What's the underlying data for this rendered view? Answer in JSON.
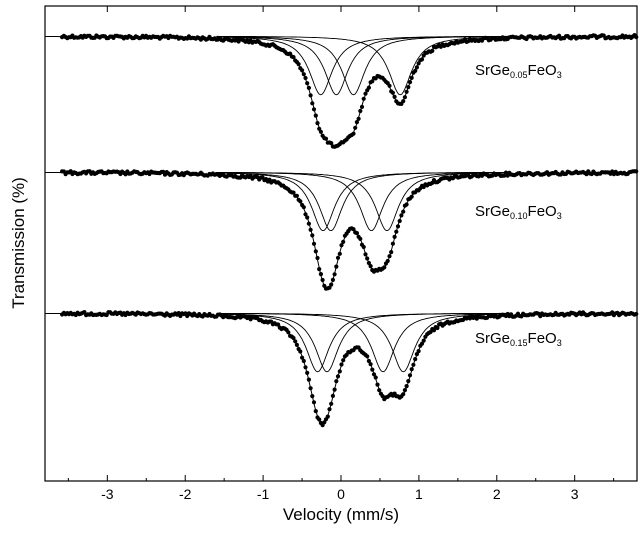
{
  "chart_data": {
    "type": "line",
    "title": "",
    "xlabel": "Velocity (mm/s)",
    "ylabel": "Transmission (%)",
    "xlim": [
      -3.8,
      3.8
    ],
    "x_ticks": [
      -3,
      -2,
      -1,
      0,
      1,
      2,
      3
    ],
    "x_tick_labels": [
      "-3",
      "-2",
      "-1",
      "0",
      "1",
      "2",
      "3"
    ],
    "y_ticks_labeled": false,
    "grid": false,
    "legend": "none",
    "colors": {
      "data": "#000000",
      "fit": "#000000",
      "axes": "#000000"
    },
    "spectra": [
      {
        "label_main": "SrGe",
        "label_sub": "0.05",
        "label_end": "FeO",
        "label_sub2": "3",
        "baseline": 0,
        "doublets": [
          {
            "center": -0.05,
            "splitting": 0.42,
            "depth": 0.42,
            "width": 0.36
          },
          {
            "center": 0.35,
            "splitting": 0.82,
            "depth": 0.42,
            "width": 0.36
          }
        ]
      },
      {
        "label_main": "SrGe",
        "label_sub": "0.10",
        "label_end": "FeO",
        "label_sub2": "3",
        "baseline": 0,
        "doublets": [
          {
            "center": 0.08,
            "splitting": 0.62,
            "depth": 0.42,
            "width": 0.36
          },
          {
            "center": 0.23,
            "splitting": 0.72,
            "depth": 0.42,
            "width": 0.36
          }
        ]
      },
      {
        "label_main": "SrGe",
        "label_sub": "0.15",
        "label_end": "FeO",
        "label_sub2": "3",
        "baseline": 0,
        "doublets": [
          {
            "center": 0.18,
            "splitting": 0.72,
            "depth": 0.42,
            "width": 0.36
          },
          {
            "center": 0.25,
            "splitting": 1.1,
            "depth": 0.42,
            "width": 0.36
          }
        ]
      }
    ]
  }
}
